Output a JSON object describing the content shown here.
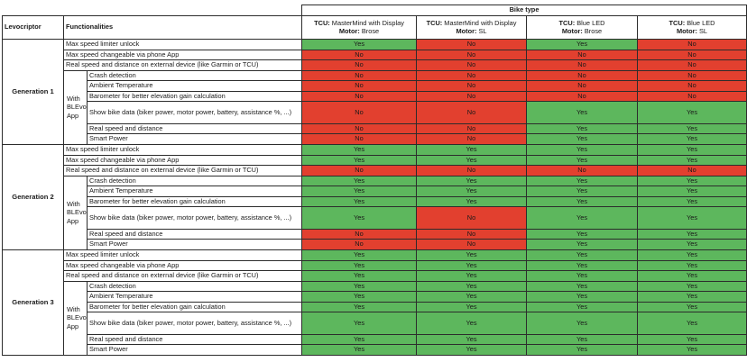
{
  "header": {
    "bike_type": "Bike type",
    "levocriptor": "Levocriptor",
    "functionalities": "Functionalities"
  },
  "columns": [
    {
      "tcu_prefix": "TCU:",
      "tcu_name": " MasterMind with Display",
      "motor_prefix": "Motor:",
      "motor_name": " Brose"
    },
    {
      "tcu_prefix": "TCU:",
      "tcu_name": " MasterMind with Display",
      "motor_prefix": "Motor:",
      "motor_name": " SL"
    },
    {
      "tcu_prefix": "TCU:",
      "tcu_name": " Blue LED",
      "motor_prefix": "Motor:",
      "motor_name": " Brose"
    },
    {
      "tcu_prefix": "TCU:",
      "tcu_name": " Blue LED",
      "motor_prefix": "Motor:",
      "motor_name": " SL"
    }
  ],
  "with_app_label": "With BLEvo App",
  "value_colors": {
    "Yes": "#5db75d",
    "No": "#e2402f"
  },
  "generations": [
    {
      "name": "Generation 1",
      "rows": [
        {
          "label": "Max speed limiter unlock",
          "values": [
            "Yes",
            "No",
            "Yes",
            "No"
          ]
        },
        {
          "label": "Max speed changeable via phone App",
          "values": [
            "No",
            "No",
            "No",
            "No"
          ]
        },
        {
          "label": "Real speed and distance on external device (like Garmin or TCU)",
          "values": [
            "No",
            "No",
            "No",
            "No"
          ]
        },
        {
          "label": "Crash detection",
          "values": [
            "No",
            "No",
            "No",
            "No"
          ]
        },
        {
          "label": "Ambient Temperature",
          "values": [
            "No",
            "No",
            "No",
            "No"
          ]
        },
        {
          "label": "Barometer for better elevation gain calculation",
          "values": [
            "No",
            "No",
            "No",
            "No"
          ]
        },
        {
          "label": "Show bike data (biker power, motor power, battery, assistance %, ...)",
          "values": [
            "No",
            "No",
            "Yes",
            "Yes"
          ]
        },
        {
          "label": "Real speed and distance",
          "values": [
            "No",
            "No",
            "Yes",
            "Yes"
          ]
        },
        {
          "label": "Smart Power",
          "values": [
            "No",
            "No",
            "Yes",
            "Yes"
          ]
        }
      ]
    },
    {
      "name": "Generation 2",
      "rows": [
        {
          "label": "Max speed limiter unlock",
          "values": [
            "Yes",
            "Yes",
            "Yes",
            "Yes"
          ]
        },
        {
          "label": "Max speed changeable via phone App",
          "values": [
            "Yes",
            "Yes",
            "Yes",
            "Yes"
          ]
        },
        {
          "label": "Real speed and distance on external device (like Garmin or TCU)",
          "values": [
            "No",
            "No",
            "No",
            "No"
          ]
        },
        {
          "label": "Crash detection",
          "values": [
            "Yes",
            "Yes",
            "Yes",
            "Yes"
          ]
        },
        {
          "label": "Ambient Temperature",
          "values": [
            "Yes",
            "Yes",
            "Yes",
            "Yes"
          ]
        },
        {
          "label": "Barometer for better elevation gain calculation",
          "values": [
            "Yes",
            "Yes",
            "Yes",
            "Yes"
          ]
        },
        {
          "label": "Show bike data (biker power, motor power, battery, assistance %, ...)",
          "values": [
            "Yes",
            "No",
            "Yes",
            "Yes"
          ]
        },
        {
          "label": "Real speed and distance",
          "values": [
            "No",
            "No",
            "Yes",
            "Yes"
          ]
        },
        {
          "label": "Smart Power",
          "values": [
            "No",
            "No",
            "Yes",
            "Yes"
          ]
        }
      ]
    },
    {
      "name": "Generation 3",
      "rows": [
        {
          "label": "Max speed limiter unlock",
          "values": [
            "Yes",
            "Yes",
            "Yes",
            "Yes"
          ]
        },
        {
          "label": "Max speed changeable via phone App",
          "values": [
            "Yes",
            "Yes",
            "Yes",
            "Yes"
          ]
        },
        {
          "label": "Real speed and distance on external device (like Garmin or TCU)",
          "values": [
            "Yes",
            "Yes",
            "Yes",
            "Yes"
          ]
        },
        {
          "label": "Crash detection",
          "values": [
            "Yes",
            "Yes",
            "Yes",
            "Yes"
          ]
        },
        {
          "label": "Ambient Temperature",
          "values": [
            "Yes",
            "Yes",
            "Yes",
            "Yes"
          ]
        },
        {
          "label": "Barometer for better elevation gain calculation",
          "values": [
            "Yes",
            "Yes",
            "Yes",
            "Yes"
          ]
        },
        {
          "label": "Show bike data (biker power, motor power, battery, assistance %, ...)",
          "values": [
            "Yes",
            "Yes",
            "Yes",
            "Yes"
          ]
        },
        {
          "label": "Real speed and distance",
          "values": [
            "Yes",
            "Yes",
            "Yes",
            "Yes"
          ]
        },
        {
          "label": "Smart Power",
          "values": [
            "Yes",
            "Yes",
            "Yes",
            "Yes"
          ]
        }
      ]
    }
  ]
}
